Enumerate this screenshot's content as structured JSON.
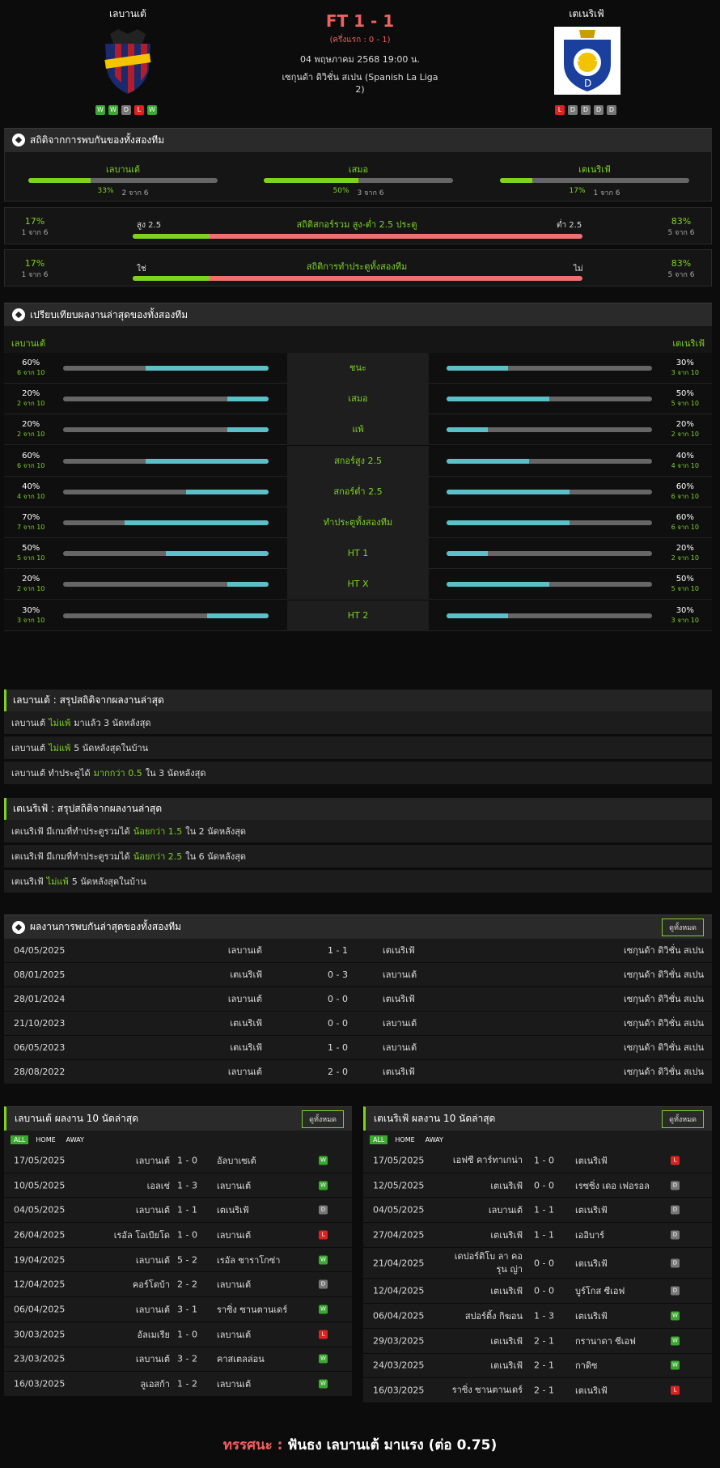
{
  "match": {
    "home": "เลบานเต้",
    "away": "เตเนริเฟ้",
    "ft": "FT 1 - 1",
    "ht": "(ครึ่งแรก : 0 - 1)",
    "date": "04 พฤษภาคม 2568 19:00 น.",
    "league": "เซกุนด้า ดิวิชั่น สเปน (Spanish La Liga 2)",
    "home_form": [
      "W",
      "W",
      "D",
      "L",
      "W"
    ],
    "away_form": [
      "L",
      "D",
      "D",
      "D",
      "D"
    ]
  },
  "h2h": {
    "title": "สถิติจากการพบกันของทั้งสองทีม",
    "cols": [
      {
        "label": "เลบานเต้",
        "pct": "33%",
        "count": "2 จาก 6",
        "value": 0.33
      },
      {
        "label": "เสมอ",
        "pct": "50%",
        "count": "3 จาก 6",
        "value": 0.5
      },
      {
        "label": "เตเนริเฟ้",
        "pct": "17%",
        "count": "1 จาก 6",
        "value": 0.17
      }
    ],
    "ou": {
      "title": "สถิติสกอร์รวม สูง-ต่ำ 2.5 ประตู",
      "left_pct": "17%",
      "left_count": "1 จาก 6",
      "left_label": "สูง 2.5",
      "right_label": "ต่ำ 2.5",
      "right_pct": "83%",
      "right_count": "5 จาก 6",
      "value": 0.17
    },
    "btts": {
      "title": "สถิติการทำประตูทั้งสองทีม",
      "left_pct": "17%",
      "left_count": "1 จาก 6",
      "left_label": "ใช่",
      "right_label": "ไม่",
      "right_pct": "83%",
      "right_count": "5 จาก 6",
      "value": 0.17
    }
  },
  "compare": {
    "title": "เปรียบเทียบผลงานล่าสุดของทั้งสองทีม",
    "home": "เลบานเต้",
    "away": "เตเนริเฟ้",
    "rows": [
      {
        "label": "ชนะ",
        "hp": "60%",
        "hc": "6 จาก 10",
        "hv": 0.6,
        "ap": "30%",
        "ac": "3 จาก 10",
        "av": 0.3
      },
      {
        "label": "เสมอ",
        "hp": "20%",
        "hc": "2 จาก 10",
        "hv": 0.2,
        "ap": "50%",
        "ac": "5 จาก 10",
        "av": 0.5
      },
      {
        "label": "แพ้",
        "hp": "20%",
        "hc": "2 จาก 10",
        "hv": 0.2,
        "ap": "20%",
        "ac": "2 จาก 10",
        "av": 0.2
      },
      {
        "label": "สกอร์สูง 2.5",
        "hp": "60%",
        "hc": "6 จาก 10",
        "hv": 0.6,
        "ap": "40%",
        "ac": "4 จาก 10",
        "av": 0.4
      },
      {
        "label": "สกอร์ต่ำ 2.5",
        "hp": "40%",
        "hc": "4 จาก 10",
        "hv": 0.4,
        "ap": "60%",
        "ac": "6 จาก 10",
        "av": 0.6
      },
      {
        "label": "ทำประตูทั้งสองทีม",
        "hp": "70%",
        "hc": "7 จาก 10",
        "hv": 0.7,
        "ap": "60%",
        "ac": "6 จาก 10",
        "av": 0.6
      },
      {
        "label": "HT 1",
        "hp": "50%",
        "hc": "5 จาก 10",
        "hv": 0.5,
        "ap": "20%",
        "ac": "2 จาก 10",
        "av": 0.2
      },
      {
        "label": "HT X",
        "hp": "20%",
        "hc": "2 จาก 10",
        "hv": 0.2,
        "ap": "50%",
        "ac": "5 จาก 10",
        "av": 0.5
      },
      {
        "label": "HT 2",
        "hp": "30%",
        "hc": "3 จาก 10",
        "hv": 0.3,
        "ap": "30%",
        "ac": "3 จาก 10",
        "av": 0.3
      }
    ]
  },
  "home_summary": {
    "title": "เลบานเต้ : สรุปสถิติจากผลงานล่าสุด",
    "rows": [
      {
        "a": "เลบานเต้",
        "b": "ไม่แพ้",
        "c": "มาแล้ว 3 นัดหลังสุด"
      },
      {
        "a": "เลบานเต้",
        "b": "ไม่แพ้",
        "c": "5  นัดหลังสุดในบ้าน"
      },
      {
        "a": "เลบานเต้  ทำประตูได้",
        "b": "มากกว่า  0.5",
        "c": "ใน 3 นัดหลังสุด"
      }
    ]
  },
  "away_summary": {
    "title": "เตเนริเฟ้ : สรุปสถิติจากผลงานล่าสุด",
    "rows": [
      {
        "a": "เตเนริเฟ้  มีเกมที่ทำประตูรวมได้",
        "b": "น้อยกว่า  1.5",
        "c": "ใน 2 นัดหลังสุด"
      },
      {
        "a": "เตเนริเฟ้  มีเกมที่ทำประตูรวมได้",
        "b": "น้อยกว่า  2.5",
        "c": "ใน 6 นัดหลังสุด"
      },
      {
        "a": "เตเนริเฟ้",
        "b": "ไม่แพ้",
        "c": "5  นัดหลังสุดในบ้าน"
      }
    ]
  },
  "recent_h2h": {
    "title": "ผลงานการพบกันล่าสุดของทั้งสองทีม",
    "view_all": "ดูทั้งหมด",
    "rows": [
      {
        "date": "04/05/2025",
        "home": "เลบานเต้",
        "score": "1 - 1",
        "away": "เตเนริเฟ้",
        "league": "เซกุนด้า ดิวิชั่น สเปน"
      },
      {
        "date": "08/01/2025",
        "home": "เตเนริเฟ้",
        "score": "0 - 3",
        "away": "เลบานเต้",
        "league": "เซกุนด้า ดิวิชั่น สเปน"
      },
      {
        "date": "28/01/2024",
        "home": "เลบานเต้",
        "score": "0 - 0",
        "away": "เตเนริเฟ้",
        "league": "เซกุนด้า ดิวิชั่น สเปน"
      },
      {
        "date": "21/10/2023",
        "home": "เตเนริเฟ้",
        "score": "0 - 0",
        "away": "เลบานเต้",
        "league": "เซกุนด้า ดิวิชั่น สเปน"
      },
      {
        "date": "06/05/2023",
        "home": "เตเนริเฟ้",
        "score": "1 - 0",
        "away": "เลบานเต้",
        "league": "เซกุนด้า ดิวิชั่น สเปน"
      },
      {
        "date": "28/08/2022",
        "home": "เลบานเต้",
        "score": "2 - 0",
        "away": "เตเนริเฟ้",
        "league": "เซกุนด้า ดิวิชั่น สเปน"
      }
    ]
  },
  "tabs": {
    "all": "ALL",
    "home": "HOME",
    "away": "AWAY"
  },
  "home_last10": {
    "title": "เลบานเต้ ผลงาน 10 นัดล่าสุด",
    "view_all": "ดูทั้งหมด",
    "rows": [
      {
        "date": "17/05/2025",
        "home": "เลบานเต้",
        "score": "1 - 0",
        "away": "อัลบาเซเต้",
        "res": "W"
      },
      {
        "date": "10/05/2025",
        "home": "เอลเช่",
        "score": "1 - 3",
        "away": "เลบานเต้",
        "res": "W"
      },
      {
        "date": "04/05/2025",
        "home": "เลบานเต้",
        "score": "1 - 1",
        "away": "เตเนริเฟ้",
        "res": "D"
      },
      {
        "date": "26/04/2025",
        "home": "เรอัล โอเบียโด",
        "score": "1 - 0",
        "away": "เลบานเต้",
        "res": "L"
      },
      {
        "date": "19/04/2025",
        "home": "เลบานเต้",
        "score": "5 - 2",
        "away": "เรอัล ซาราโกซ่า",
        "res": "W"
      },
      {
        "date": "12/04/2025",
        "home": "คอร์โดบ้า",
        "score": "2 - 2",
        "away": "เลบานเต้",
        "res": "D"
      },
      {
        "date": "06/04/2025",
        "home": "เลบานเต้",
        "score": "3 - 1",
        "away": "ราซิ่ง ซานตานเดร์",
        "res": "W"
      },
      {
        "date": "30/03/2025",
        "home": "อัลเมเรีย",
        "score": "1 - 0",
        "away": "เลบานเต้",
        "res": "L"
      },
      {
        "date": "23/03/2025",
        "home": "เลบานเต้",
        "score": "3 - 2",
        "away": "คาสเตลล่อน",
        "res": "W"
      },
      {
        "date": "16/03/2025",
        "home": "ลูเอสก้า",
        "score": "1 - 2",
        "away": "เลบานเต้",
        "res": "W"
      }
    ]
  },
  "away_last10": {
    "title": "เตเนริเฟ้ ผลงาน 10 นัดล่าสุด",
    "view_all": "ดูทั้งหมด",
    "rows": [
      {
        "date": "17/05/2025",
        "home": "เอฟซี คาร์ทาเกน่า",
        "score": "1 - 0",
        "away": "เตเนริเฟ้",
        "res": "L"
      },
      {
        "date": "12/05/2025",
        "home": "เตเนริเฟ้",
        "score": "0 - 0",
        "away": "เรซซิ่ง เดอ เฟอรอล",
        "res": "D"
      },
      {
        "date": "04/05/2025",
        "home": "เลบานเต้",
        "score": "1 - 1",
        "away": "เตเนริเฟ้",
        "res": "D"
      },
      {
        "date": "27/04/2025",
        "home": "เตเนริเฟ้",
        "score": "1 - 1",
        "away": "เออิบาร์",
        "res": "D"
      },
      {
        "date": "21/04/2025",
        "home": "เดปอร์ติโบ ลา คอรุน ญ่า",
        "score": "0 - 0",
        "away": "เตเนริเฟ้",
        "res": "D"
      },
      {
        "date": "12/04/2025",
        "home": "เตเนริเฟ้",
        "score": "0 - 0",
        "away": "บูร์โกส ซีเอฟ",
        "res": "D"
      },
      {
        "date": "06/04/2025",
        "home": "สปอร์ติ้ง กิฆอน",
        "score": "1 - 3",
        "away": "เตเนริเฟ้",
        "res": "W"
      },
      {
        "date": "29/03/2025",
        "home": "เตเนริเฟ้",
        "score": "2 - 1",
        "away": "กรานาดา ซีเอฟ",
        "res": "W"
      },
      {
        "date": "24/03/2025",
        "home": "เตเนริเฟ้",
        "score": "2 - 1",
        "away": "กาดิซ",
        "res": "W"
      },
      {
        "date": "16/03/2025",
        "home": "ราซิ่ง ซานตานเดร์",
        "score": "2 - 1",
        "away": "เตเนริเฟ้",
        "res": "L"
      }
    ]
  },
  "prediction": {
    "label": "ทรรศนะ :",
    "text": "ฟันธง เลบานเต้ มาแรง (ต่อ 0.75)"
  },
  "colors": {
    "accent": "#7ed321",
    "bar": "#5bc0c8",
    "red": "#f06060"
  }
}
